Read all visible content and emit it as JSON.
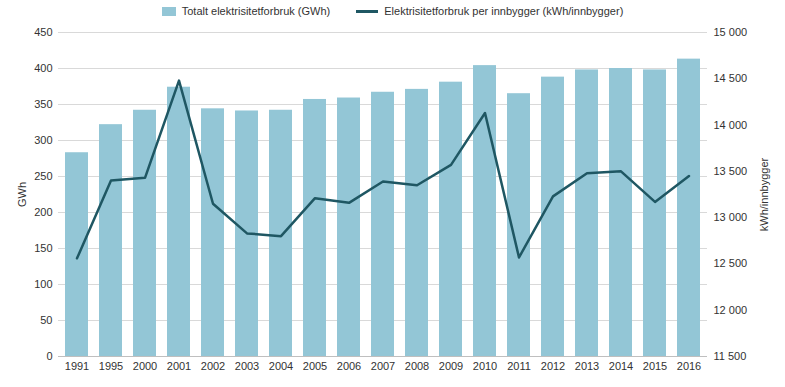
{
  "chart_data": {
    "type": "bar",
    "categories": [
      "1991",
      "1995",
      "2000",
      "2001",
      "2002",
      "2003",
      "2004",
      "2005",
      "2006",
      "2007",
      "2008",
      "2009",
      "2010",
      "2011",
      "2012",
      "2013",
      "2014",
      "2015",
      "2016"
    ],
    "series": [
      {
        "name": "Totalt elektrisitetforbruk (GWh)",
        "type": "bar",
        "color": "#93c6d6",
        "values": [
          283,
          322,
          342,
          374,
          344,
          341,
          342,
          357,
          359,
          367,
          371,
          381,
          404,
          365,
          388,
          398,
          400,
          398,
          413
        ]
      },
      {
        "name": "Elektrisitetforbruk per innbygger (kWh/innbygger)",
        "type": "line",
        "color": "#1f5763",
        "axis": "y2",
        "values": [
          12560,
          13400,
          13430,
          14480,
          13150,
          12830,
          12800,
          13210,
          13160,
          13390,
          13350,
          13570,
          14130,
          12570,
          13230,
          13480,
          13500,
          13170,
          13450
        ]
      }
    ],
    "ylim": [
      0,
      450
    ],
    "yticks": [
      0,
      50,
      100,
      150,
      200,
      250,
      300,
      350,
      400,
      450
    ],
    "y_label": "GWh",
    "y2lim": [
      11500,
      15000
    ],
    "y2ticks": [
      {
        "value": 11500,
        "label": "11 500"
      },
      {
        "value": 12000,
        "label": "12 000"
      },
      {
        "value": 12500,
        "label": "12 500"
      },
      {
        "value": 13000,
        "label": "13 000"
      },
      {
        "value": 13500,
        "label": "13 500"
      },
      {
        "value": 14000,
        "label": "14 000"
      },
      {
        "value": 14500,
        "label": "14 500"
      },
      {
        "value": 15000,
        "label": "15 000"
      }
    ],
    "y2_label": "kWh/innbygger",
    "grid": true,
    "legend": "top"
  }
}
